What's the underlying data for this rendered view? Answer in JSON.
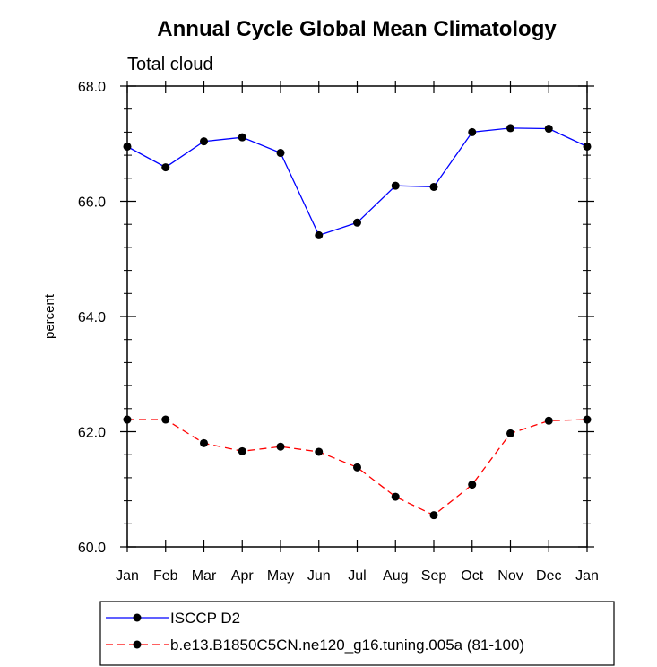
{
  "chart_data": {
    "type": "line",
    "title": "Annual Cycle Global Mean Climatology",
    "subtitle": "Total cloud",
    "ylabel": "percent",
    "xlabel": "",
    "categories": [
      "Jan",
      "Feb",
      "Mar",
      "Apr",
      "May",
      "Jun",
      "Jul",
      "Aug",
      "Sep",
      "Oct",
      "Nov",
      "Dec",
      "Jan"
    ],
    "ylim": [
      60.0,
      68.0
    ],
    "yticks": [
      "60.0",
      "62.0",
      "64.0",
      "66.0",
      "68.0"
    ],
    "series": [
      {
        "name": "ISCCP D2",
        "color": "#0000ff",
        "line_style": "solid",
        "values": [
          66.95,
          66.59,
          67.04,
          67.11,
          66.84,
          65.41,
          65.63,
          66.27,
          66.25,
          67.2,
          67.27,
          67.26,
          66.95
        ]
      },
      {
        "name": "b.e13.B1850C5CN.ne120_g16.tuning.005a (81-100)",
        "color": "#ff0000",
        "line_style": "dashed",
        "values": [
          62.21,
          62.21,
          61.8,
          61.66,
          61.74,
          61.65,
          61.38,
          60.87,
          60.55,
          61.08,
          61.97,
          62.19,
          62.21
        ]
      }
    ],
    "grid": false,
    "legend_position": "bottom"
  }
}
